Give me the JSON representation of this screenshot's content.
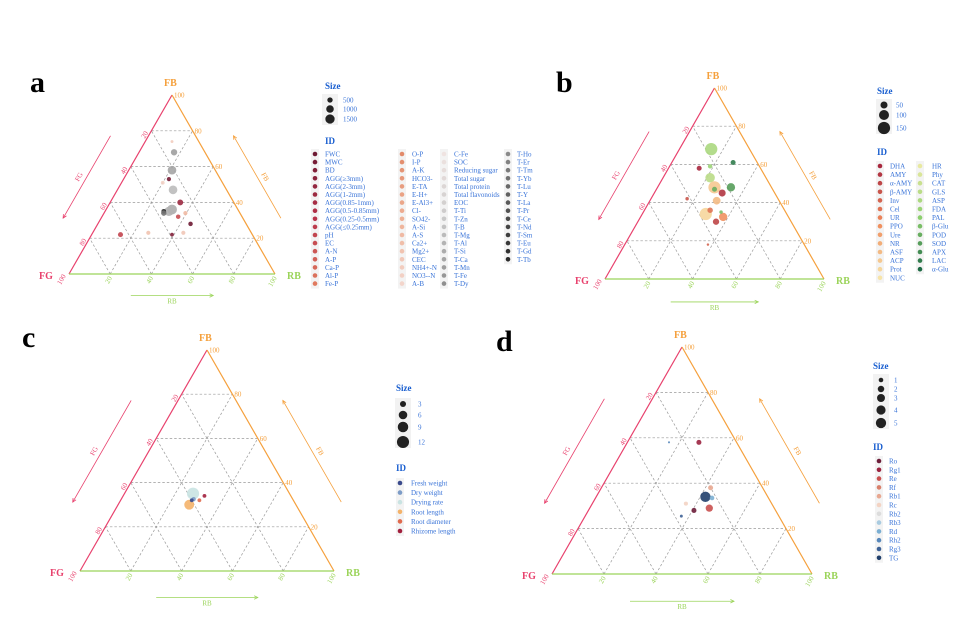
{
  "axis_colors": {
    "FG": "#e8416d",
    "FB": "#f5a03c",
    "RB": "#9bd45a"
  },
  "chart_data": [
    {
      "panel": "a",
      "type": "scatter",
      "subtype": "ternary",
      "axes": {
        "left": "FG",
        "top": "FB",
        "right": "RB"
      },
      "ticks": [
        "20",
        "40",
        "60",
        "80",
        "100"
      ],
      "arrow_labels": {
        "FG": "FG",
        "FB": "FB",
        "RB": "RB"
      },
      "size_legend": {
        "title": "Size",
        "values": [
          500,
          1000,
          1500
        ],
        "labels": [
          "500",
          "1000",
          "1500"
        ]
      },
      "id_legend": {
        "title": "ID",
        "columns": [
          {
            "stops": [
              "#6e1a33",
              "#b8334a",
              "#e07a5f"
            ],
            "items": [
              "FWC",
              "MWC",
              "BD",
              "AGG(≥3mm)",
              "AGG(2-3mm)",
              "AGG(1-2mm)",
              "AGG(0.85-1mm)",
              "AGG(0.5-0.85mm)",
              "AGG(0.25-0.5mm)",
              "AGG(≤0.25mm)",
              "pH",
              "EC",
              "A-N",
              "A-P",
              "Ca-P",
              "Al-P",
              "Fe-P"
            ]
          },
          {
            "stops": [
              "#e28a6a",
              "#eeb095",
              "#f3d5cb"
            ],
            "items": [
              "O-P",
              "I-P",
              "A-K",
              "HCO3-",
              "E-TA",
              "E-H+",
              "E-Al3+",
              "Cl-",
              "SO42-",
              "A-Si",
              "A-S",
              "Ca2+",
              "Mg2+",
              "CEC",
              "NH4+-N",
              "NO3--N",
              "A-B"
            ]
          },
          {
            "stops": [
              "#efe3e1",
              "#c9c9c9",
              "#8f8f8f"
            ],
            "items": [
              "C-Fe",
              "SOC",
              "Reducing sugar",
              "Total sugar",
              "Total protein",
              "Total flavonoids",
              "EOC",
              "T-Ti",
              "T-Zn",
              "T-B",
              "T-Mg",
              "T-Al",
              "T-Si",
              "T-Ca",
              "T-Mn",
              "T-Fe",
              "T-Dy"
            ]
          },
          {
            "stops": [
              "#8a8a8a",
              "#555555",
              "#2b2b2b"
            ],
            "items": [
              "T-Ho",
              "T-Er",
              "T-Tm",
              "T-Yb",
              "T-Lu",
              "T-Y",
              "T-La",
              "T-Pr",
              "T-Ce",
              "T-Nd",
              "T-Sm",
              "T-Eu",
              "T-Gd",
              "T-Tb"
            ]
          }
        ]
      },
      "points": [
        {
          "id": "T-Mn",
          "FB": 68,
          "RB": 17,
          "size": 700
        },
        {
          "id": "T-Ca",
          "FB": 58,
          "RB": 21,
          "size": 1300
        },
        {
          "id": "T-Mg",
          "FB": 47,
          "RB": 27,
          "size": 1300
        },
        {
          "id": "T-Si",
          "FB": 36,
          "RB": 32,
          "size": 1700
        },
        {
          "id": "T-Al",
          "FB": 35,
          "RB": 31,
          "size": 1500
        },
        {
          "id": "T-Tb",
          "FB": 35,
          "RB": 28.5,
          "size": 400
        },
        {
          "id": "T-Yb",
          "FB": 34,
          "RB": 29,
          "size": 500
        },
        {
          "id": "AGG(1-2mm)",
          "FB": 40,
          "RB": 34,
          "size": 600
        },
        {
          "id": "MWC",
          "FB": 53,
          "RB": 22,
          "size": 300
        },
        {
          "id": "FWC",
          "FB": 28,
          "RB": 45,
          "size": 350
        },
        {
          "id": "pH",
          "FB": 22,
          "RB": 14,
          "size": 450
        },
        {
          "id": "Mg2+",
          "FB": 23,
          "RB": 27,
          "size": 300
        },
        {
          "id": "BD",
          "FB": 22,
          "RB": 39,
          "size": 250
        },
        {
          "id": "CEC",
          "FB": 23,
          "RB": 44,
          "size": 300
        },
        {
          "id": "A-S",
          "FB": 34,
          "RB": 39.5,
          "size": 300
        },
        {
          "id": "EC",
          "FB": 32,
          "RB": 37,
          "size": 350
        },
        {
          "id": "NH4+-N",
          "FB": 74,
          "RB": 13,
          "size": 150
        },
        {
          "id": "NO3--N",
          "FB": 51,
          "RB": 20,
          "size": 250
        }
      ]
    },
    {
      "panel": "b",
      "type": "scatter",
      "subtype": "ternary",
      "axes": {
        "left": "FG",
        "top": "FB",
        "right": "RB"
      },
      "ticks": [
        "20",
        "40",
        "60",
        "80",
        "100"
      ],
      "arrow_labels": {
        "FG": "FG",
        "FB": "FB",
        "RB": "RB"
      },
      "size_legend": {
        "title": "Size",
        "values": [
          50,
          100,
          150
        ],
        "labels": [
          "50",
          "100",
          "150"
        ]
      },
      "id_legend": {
        "title": "ID",
        "columns": [
          {
            "stops": [
              "#a8283e",
              "#ef8a5a",
              "#f7e4a8"
            ],
            "items": [
              "DHA",
              "AMY",
              "α-AMY",
              "β-AMY",
              "Inv",
              "Cel",
              "UR",
              "PPO",
              "Ure",
              "NR",
              "ASF",
              "ACP",
              "Prot",
              "NUC"
            ]
          },
          {
            "stops": [
              "#e8e9a0",
              "#8ccf6e",
              "#1f6b45"
            ],
            "items": [
              "HR",
              "Phy",
              "CAT",
              "GLS",
              "ASP",
              "FDA",
              "PAL",
              "β-Glu",
              "POD",
              "SOD",
              "APX",
              "LAC",
              "α-Glu"
            ]
          }
        ]
      },
      "points": [
        {
          "id": "ASP",
          "FB": 68,
          "RB": 14.5,
          "size": 150
        },
        {
          "id": "LAC",
          "FB": 61,
          "RB": 28,
          "size": 25
        },
        {
          "id": "DHA",
          "FB": 58,
          "RB": 14,
          "size": 25
        },
        {
          "id": "FDA",
          "FB": 59,
          "RB": 18.5,
          "size": 20
        },
        {
          "id": "GLS",
          "FB": 53,
          "RB": 21.5,
          "size": 90
        },
        {
          "id": "ACP",
          "FB": 48,
          "RB": 26,
          "size": 150
        },
        {
          "id": "SOD",
          "FB": 48,
          "RB": 33.5,
          "size": 70
        },
        {
          "id": "AMY",
          "FB": 45,
          "RB": 31,
          "size": 50
        },
        {
          "id": "β-AMY",
          "FB": 42,
          "RB": 16.5,
          "size": 12
        },
        {
          "id": "ASF",
          "FB": 41,
          "RB": 30.5,
          "size": 60
        },
        {
          "id": "Prot",
          "FB": 34,
          "RB": 29,
          "size": 150
        },
        {
          "id": "Cel",
          "FB": 36,
          "RB": 30,
          "size": 30
        },
        {
          "id": "PPO",
          "FB": 32.5,
          "RB": 37.7,
          "size": 70
        },
        {
          "id": "α-AMY",
          "FB": 30,
          "RB": 35.7,
          "size": 40
        },
        {
          "id": "β-Glu",
          "FB": 35,
          "RB": 35.5,
          "size": 12
        },
        {
          "id": "POD",
          "FB": 47,
          "RB": 26.5,
          "size": 25
        },
        {
          "id": "Inv",
          "FB": 18,
          "RB": 38,
          "size": 6
        }
      ]
    },
    {
      "panel": "c",
      "type": "scatter",
      "subtype": "ternary",
      "axes": {
        "left": "FG",
        "top": "FB",
        "right": "RB"
      },
      "ticks": [
        "20",
        "40",
        "60",
        "80",
        "100"
      ],
      "arrow_labels": {
        "FG": "FG",
        "FB": "FB",
        "RB": "RB"
      },
      "size_legend": {
        "title": "Size",
        "values": [
          3,
          6,
          9,
          12
        ],
        "labels": [
          "3",
          "6",
          "9",
          "12"
        ]
      },
      "id_legend": {
        "title": "ID",
        "columns": [
          {
            "colors": [
              "#3a4a8c",
              "#7d9cc7",
              "#c9e3e2",
              "#f4b26a",
              "#e06a4d",
              "#a2203d"
            ],
            "items": [
              "Fresh weight",
              "Dry weight",
              "Drying rate",
              "Root length",
              "Root diameter",
              "Rhizome length"
            ]
          }
        ]
      },
      "points": [
        {
          "id": "Drying rate",
          "FB": 35,
          "RB": 27,
          "size": 12
        },
        {
          "id": "Root length",
          "FB": 30,
          "RB": 28,
          "size": 8
        },
        {
          "id": "Dry weight",
          "FB": 32.5,
          "RB": 28.5,
          "size": 1.5
        },
        {
          "id": "Fresh weight",
          "FB": 32,
          "RB": 28,
          "size": 1.2
        },
        {
          "id": "Root diameter",
          "FB": 32,
          "RB": 31,
          "size": 1.2
        },
        {
          "id": "Rhizome length",
          "FB": 34,
          "RB": 32,
          "size": 1.2
        }
      ]
    },
    {
      "panel": "d",
      "type": "scatter",
      "subtype": "ternary",
      "axes": {
        "left": "FG",
        "top": "FB",
        "right": "RB"
      },
      "ticks": [
        "20",
        "40",
        "60",
        "80",
        "100"
      ],
      "arrow_labels": {
        "FG": "FG",
        "FB": "FB",
        "RB": "RB"
      },
      "size_legend": {
        "title": "Size",
        "values": [
          1,
          2,
          3,
          4,
          5
        ],
        "labels": [
          "1",
          "2",
          "3",
          "4",
          "5"
        ]
      },
      "id_legend": {
        "title": "ID",
        "columns": [
          {
            "colors": [
              "#6d1e3a",
              "#9b2340",
              "#c9504f",
              "#d9806b",
              "#e8a891",
              "#f3d3c3",
              "#dcdcdc",
              "#a9cbe0",
              "#7aaed2",
              "#5888bb",
              "#3e6296",
              "#203f6b"
            ],
            "items": [
              "Ro",
              "Rg1",
              "Re",
              "Rf",
              "Rb1",
              "Rc",
              "Rb2",
              "Rb3",
              "Rd",
              "Rh2",
              "Rg3",
              "TG"
            ]
          }
        ]
      },
      "points": [
        {
          "id": "Rg1",
          "FB": 58,
          "RB": 27.5,
          "size": 1.2
        },
        {
          "id": "Rh2",
          "FB": 58,
          "RB": 16,
          "size": 0.2
        },
        {
          "id": "Rb1",
          "FB": 38,
          "RB": 42,
          "size": 1.2
        },
        {
          "id": "TG",
          "FB": 34,
          "RB": 42,
          "size": 5
        },
        {
          "id": "Rd",
          "FB": 33.5,
          "RB": 44.8,
          "size": 1
        },
        {
          "id": "Re",
          "FB": 29,
          "RB": 46,
          "size": 2.5
        },
        {
          "id": "Rc",
          "FB": 31,
          "RB": 36,
          "size": 0.8
        },
        {
          "id": "Ro",
          "FB": 28,
          "RB": 40.6,
          "size": 1.2
        },
        {
          "id": "Rg3",
          "FB": 25.5,
          "RB": 37,
          "size": 0.4
        }
      ]
    }
  ]
}
